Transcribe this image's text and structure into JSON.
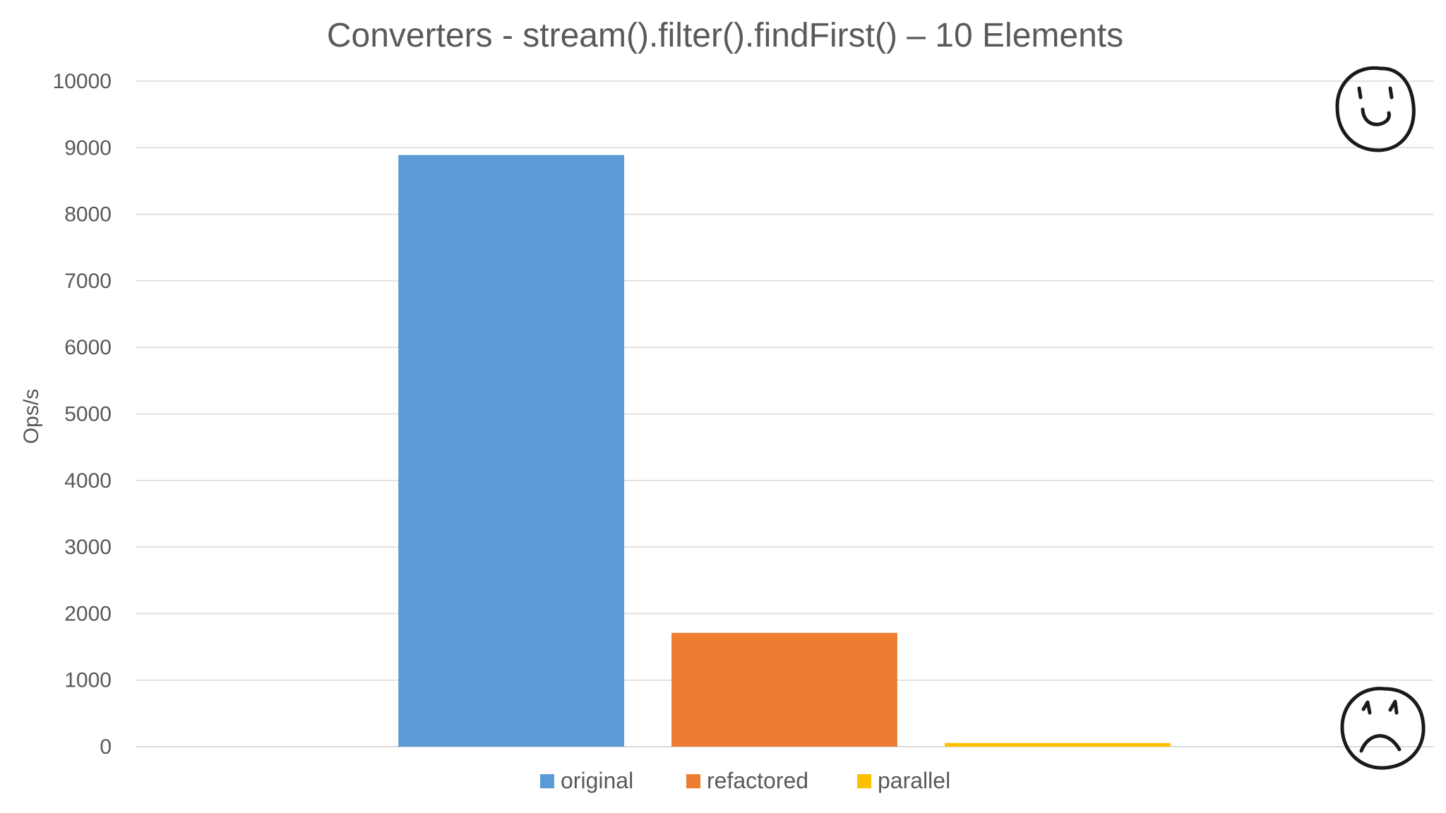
{
  "chart_data": {
    "type": "bar",
    "title": "Converters - stream().filter().findFirst() – 10 Elements",
    "xlabel": "",
    "ylabel": "Ops/s",
    "ylim": [
      0,
      10000
    ],
    "yticks": [
      "0",
      "1000",
      "2000",
      "3000",
      "4000",
      "5000",
      "6000",
      "7000",
      "8000",
      "9000",
      "10000"
    ],
    "grid": true,
    "legend_position": "bottom",
    "categories": [
      ""
    ],
    "series": [
      {
        "name": "original",
        "values": [
          8890
        ],
        "color": "#5b9bd5"
      },
      {
        "name": "refactored",
        "values": [
          1710
        ],
        "color": "#ed7d31"
      },
      {
        "name": "parallel",
        "values": [
          55
        ],
        "color": "#ffc000"
      }
    ]
  },
  "decorations": {
    "top_right": "smiley-face-icon",
    "bottom_right": "frowny-face-icon"
  }
}
